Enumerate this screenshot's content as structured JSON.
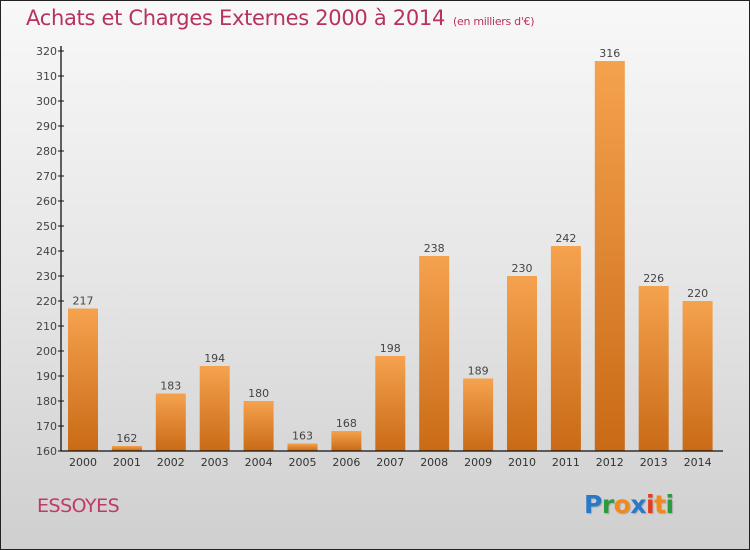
{
  "chart_data": {
    "type": "bar",
    "title": "Achats et Charges Externes 2000 à 2014",
    "subtitle": "(en milliers d'€)",
    "xlabel": "",
    "ylabel": "",
    "categories": [
      "2000",
      "2001",
      "2002",
      "2003",
      "2004",
      "2005",
      "2006",
      "2007",
      "2008",
      "2009",
      "2010",
      "2011",
      "2012",
      "2013",
      "2014"
    ],
    "values": [
      217,
      162,
      183,
      194,
      180,
      163,
      168,
      198,
      238,
      189,
      230,
      242,
      316,
      226,
      220
    ],
    "ylim": [
      160,
      320
    ],
    "yticks": [
      160,
      170,
      180,
      190,
      200,
      210,
      220,
      230,
      240,
      250,
      260,
      270,
      280,
      290,
      300,
      310,
      320
    ],
    "grid": false,
    "legend": "none",
    "bar_color_top": "#f5a24e",
    "bar_color_bottom": "#c96a16"
  },
  "footer": {
    "city": "ESSOYES",
    "logo": {
      "letters": [
        "P",
        "r",
        "o",
        "x",
        "i",
        "t",
        "i"
      ],
      "colors": [
        "#2a78c8",
        "#2e9a3e",
        "#f08a1e",
        "#2a78c8",
        "#e63b1e",
        "#f08a1e",
        "#2e9a3e"
      ]
    }
  }
}
